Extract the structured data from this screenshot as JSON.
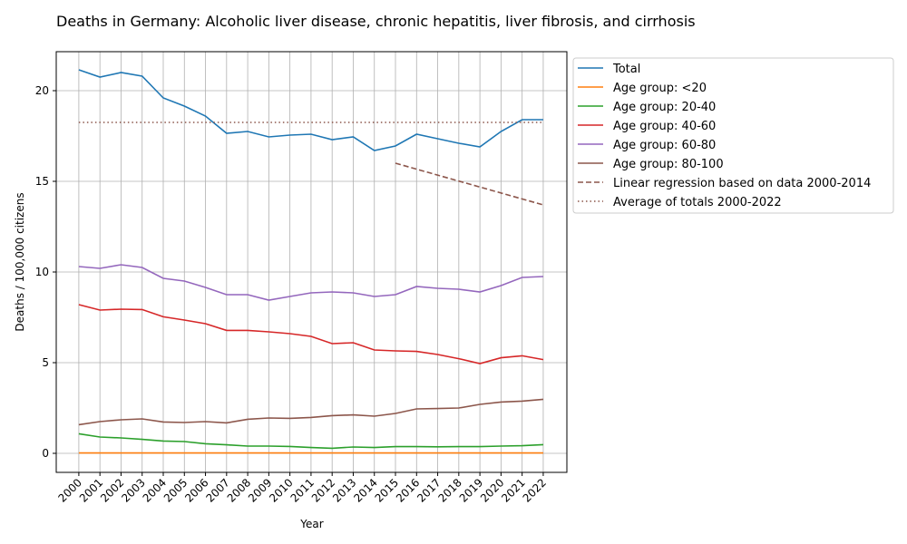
{
  "chart_data": {
    "type": "line",
    "title": "Deaths in Germany: Alcoholic liver disease, chronic hepatitis, liver fibrosis, and cirrhosis",
    "xlabel": "Year",
    "ylabel": "Deaths / 100,000 citizens",
    "x": [
      2000,
      2001,
      2002,
      2003,
      2004,
      2005,
      2006,
      2007,
      2008,
      2009,
      2010,
      2011,
      2012,
      2013,
      2014,
      2015,
      2016,
      2017,
      2018,
      2019,
      2020,
      2021,
      2022
    ],
    "xticks": [
      "2000",
      "2001",
      "2002",
      "2003",
      "2004",
      "2005",
      "2006",
      "2007",
      "2008",
      "2009",
      "2010",
      "2011",
      "2012",
      "2013",
      "2014",
      "2015",
      "2016",
      "2017",
      "2018",
      "2019",
      "2020",
      "2021",
      "2022"
    ],
    "yticks": [
      0,
      5,
      10,
      15,
      20
    ],
    "xlim": [
      1998.93,
      2023.12
    ],
    "ylim": [
      -1.05,
      22.15
    ],
    "grid": true,
    "legend_position": "outside-top-right",
    "series": [
      {
        "name": "Total",
        "color": "#1f77b4",
        "style": "solid",
        "values": [
          21.15,
          20.75,
          21.0,
          20.8,
          19.6,
          19.15,
          18.6,
          17.65,
          17.75,
          17.45,
          17.55,
          17.6,
          17.3,
          17.45,
          16.7,
          16.95,
          17.6,
          17.35,
          17.1,
          16.9,
          17.75,
          18.4,
          18.4
        ]
      },
      {
        "name": "Age group: <20",
        "color": "#ff7f0e",
        "style": "solid",
        "values": [
          0.02,
          0.02,
          0.02,
          0.02,
          0.02,
          0.02,
          0.02,
          0.02,
          0.02,
          0.02,
          0.02,
          0.02,
          0.02,
          0.02,
          0.02,
          0.02,
          0.02,
          0.02,
          0.02,
          0.02,
          0.02,
          0.02,
          0.02
        ]
      },
      {
        "name": "Age group: 20-40",
        "color": "#2ca02c",
        "style": "solid",
        "values": [
          1.08,
          0.9,
          0.85,
          0.77,
          0.68,
          0.65,
          0.53,
          0.47,
          0.4,
          0.4,
          0.38,
          0.32,
          0.28,
          0.35,
          0.32,
          0.37,
          0.37,
          0.36,
          0.37,
          0.37,
          0.4,
          0.42,
          0.48
        ]
      },
      {
        "name": "Age group: 40-60",
        "color": "#d62728",
        "style": "solid",
        "values": [
          8.2,
          7.9,
          7.95,
          7.93,
          7.53,
          7.35,
          7.15,
          6.78,
          6.78,
          6.7,
          6.6,
          6.45,
          6.05,
          6.1,
          5.7,
          5.65,
          5.62,
          5.45,
          5.22,
          4.95,
          5.27,
          5.38,
          5.17
        ]
      },
      {
        "name": "Age group: 60-80",
        "color": "#9467bd",
        "style": "solid",
        "values": [
          10.3,
          10.2,
          10.4,
          10.25,
          9.65,
          9.5,
          9.15,
          8.75,
          8.75,
          8.45,
          8.65,
          8.85,
          8.9,
          8.85,
          8.65,
          8.75,
          9.2,
          9.1,
          9.05,
          8.9,
          9.25,
          9.7,
          9.75
        ]
      },
      {
        "name": "Age group: 80-100",
        "color": "#8c564b",
        "style": "solid",
        "values": [
          1.58,
          1.75,
          1.85,
          1.9,
          1.73,
          1.7,
          1.75,
          1.68,
          1.88,
          1.95,
          1.93,
          1.98,
          2.08,
          2.12,
          2.05,
          2.2,
          2.45,
          2.47,
          2.5,
          2.7,
          2.83,
          2.88,
          2.98
        ]
      },
      {
        "name": "Linear regression based on data 2000-2014",
        "color": "#8c564b",
        "style": "dashed",
        "x": [
          2015,
          2022
        ],
        "values": [
          16.0,
          13.7
        ]
      },
      {
        "name": "Average of totals 2000-2022",
        "color": "#8c564b",
        "style": "dotted",
        "x": [
          2000,
          2022
        ],
        "values": [
          18.25,
          18.25
        ]
      }
    ]
  }
}
